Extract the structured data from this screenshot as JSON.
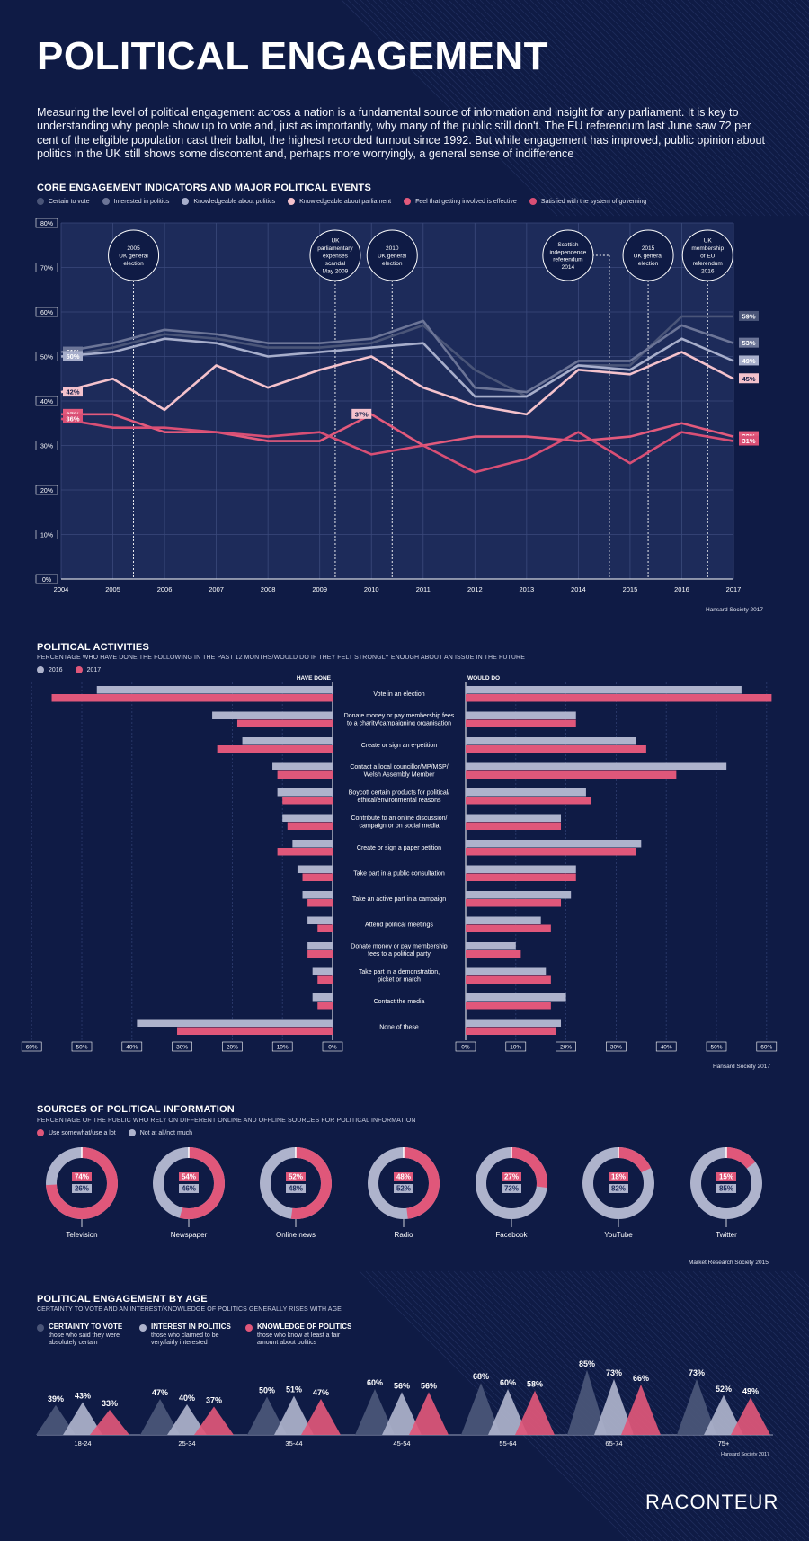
{
  "header": {
    "title": "POLITICAL ENGAGEMENT",
    "intro": "Measuring the level of political engagement across a nation is a fundamental source of information and insight for any parliament. It is key to understanding why people show up to vote and, just as importantly, why many of the public still don't. The EU referendum last June saw 72 per cent of the eligible population cast their ballot, the highest recorded turnout since 1992. But while engagement has improved, public opinion about politics in the UK still shows some discontent and, perhaps more worryingly, a general sense of indifference"
  },
  "colors": {
    "background": "#0f1b45",
    "panel": "#1d2b5a",
    "certain": "#4a5578",
    "interested": "#6c7597",
    "knowledgeable": "#a7aecb",
    "parliament": "#f4c2cc",
    "involved": "#e35a7c",
    "satisfied": "#d94f75",
    "bar2016": "#aeb3cc",
    "bar2017": "#e0577a"
  },
  "chart_data": [
    {
      "type": "line",
      "title": "CORE ENGAGEMENT INDICATORS AND MAJOR POLITICAL EVENTS",
      "source": "Hansard Society 2017",
      "x": [
        2004,
        2005,
        2006,
        2007,
        2008,
        2009,
        2010,
        2011,
        2012,
        2013,
        2014,
        2015,
        2016,
        2017
      ],
      "ylim": [
        0,
        80
      ],
      "yticks": [
        "0%",
        "10%",
        "20%",
        "30%",
        "40%",
        "50%",
        "60%",
        "70%",
        "80%"
      ],
      "series": [
        {
          "name": "Certain to vote",
          "color": "#4a5578",
          "values": [
            50,
            52,
            55,
            54,
            52,
            52,
            53,
            57,
            47,
            41,
            48,
            48,
            59,
            59
          ],
          "start_label": "",
          "end_label": "59%"
        },
        {
          "name": "Interested in politics",
          "color": "#6c7597",
          "values": [
            51,
            53,
            56,
            55,
            53,
            53,
            54,
            58,
            43,
            42,
            49,
            49,
            57,
            53
          ],
          "start_label": "51%",
          "end_label": "53%"
        },
        {
          "name": "Knowledgeable about politics",
          "color": "#a7aecb",
          "values": [
            50,
            51,
            54,
            53,
            50,
            51,
            52,
            53,
            41,
            41,
            48,
            47,
            54,
            49
          ],
          "start_label": "50%",
          "end_label": "49%"
        },
        {
          "name": "Knowledgeable about parliament",
          "color": "#f4c2cc",
          "values": [
            42,
            45,
            38,
            48,
            43,
            47,
            50,
            43,
            39,
            37,
            47,
            46,
            51,
            45
          ],
          "start_label": "42%",
          "end_label": "45%"
        },
        {
          "name": "Feel that getting involved is effective",
          "color": "#e35a7c",
          "values": [
            37,
            37,
            33,
            33,
            31,
            31,
            37,
            30,
            32,
            32,
            31,
            32,
            35,
            32
          ],
          "start_label": "37%",
          "end_label": "32%"
        },
        {
          "name": "Satisfied with the system of governing",
          "color": "#d94f75",
          "values": [
            36,
            34,
            34,
            33,
            32,
            33,
            28,
            30,
            24,
            27,
            33,
            26,
            33,
            31
          ],
          "start_label": "36%",
          "end_label": "31%"
        }
      ],
      "mid_label": {
        "text": "37%",
        "year": 2010,
        "value": 37
      },
      "events": [
        {
          "lines": [
            "2005",
            "UK general",
            "election"
          ],
          "year": 2005.4
        },
        {
          "lines": [
            "UK",
            "parliamentary",
            "expenses",
            "scandal",
            "May 2009"
          ],
          "year": 2009.3
        },
        {
          "lines": [
            "2010",
            "UK general",
            "election"
          ],
          "year": 2010.4
        },
        {
          "lines": [
            "Scottish",
            "independence",
            "referendum",
            "2014"
          ],
          "year": 2014.6
        },
        {
          "lines": [
            "2015",
            "UK general",
            "election"
          ],
          "year": 2015.35
        },
        {
          "lines": [
            "UK",
            "membership",
            "of EU",
            "referendum",
            "2016"
          ],
          "year": 2016.5
        }
      ]
    },
    {
      "type": "bar",
      "title": "POLITICAL ACTIVITIES",
      "subtitle": "PERCENTAGE WHO HAVE DONE THE FOLLOWING IN THE PAST 12 MONTHS/WOULD DO IF THEY FELT STRONGLY ENOUGH ABOUT AN ISSUE IN THE FUTURE",
      "source": "Hansard Society 2017",
      "left_heading": "HAVE DONE",
      "right_heading": "WOULD DO",
      "legend": [
        "2016",
        "2017"
      ],
      "ticks_left": [
        "60%",
        "50%",
        "40%",
        "30%",
        "20%",
        "10%",
        "0%"
      ],
      "ticks_right": [
        "0%",
        "10%",
        "20%",
        "30%",
        "40%",
        "50%",
        "60%"
      ],
      "categories": [
        [
          "Vote in an election"
        ],
        [
          "Donate money or pay membership fees",
          "to a charity/campaigning organisation"
        ],
        [
          "Create or sign an e-petition"
        ],
        [
          "Contact a local councillor/MP/MSP/",
          "Welsh Assembly Member"
        ],
        [
          "Boycott certain products for political/",
          "ethical/environmental reasons"
        ],
        [
          "Contribute to an online discussion/",
          "campaign or on social media"
        ],
        [
          "Create or sign a paper petition"
        ],
        [
          "Take part in a public consultation"
        ],
        [
          "Take an active part in a campaign"
        ],
        [
          "Attend political meetings"
        ],
        [
          "Donate money or pay membership",
          "fees to a political party"
        ],
        [
          "Take part in a demonstration,",
          "picket or march"
        ],
        [
          "Contact the media"
        ],
        [
          "None of these"
        ]
      ],
      "have_done_2016": [
        47,
        24,
        18,
        12,
        11,
        10,
        8,
        7,
        6,
        5,
        5,
        4,
        4,
        39
      ],
      "have_done_2017": [
        56,
        19,
        23,
        11,
        10,
        9,
        11,
        6,
        5,
        3,
        5,
        3,
        3,
        31
      ],
      "would_do_2016": [
        55,
        22,
        34,
        52,
        24,
        19,
        35,
        22,
        21,
        15,
        10,
        16,
        20,
        19
      ],
      "would_do_2017": [
        61,
        22,
        36,
        42,
        25,
        19,
        34,
        22,
        19,
        17,
        11,
        17,
        17,
        18
      ]
    },
    {
      "type": "pie",
      "title": "SOURCES OF POLITICAL INFORMATION",
      "subtitle": "PERCENTAGE OF THE PUBLIC WHO RELY ON DIFFERENT ONLINE AND OFFLINE SOURCES FOR POLITICAL INFORMATION",
      "source": "Market Research Society 2015",
      "legend": [
        "Use somewhat/use a lot",
        "Not at all/not much"
      ],
      "items": [
        {
          "name": "Television",
          "use": 74,
          "not": 26,
          "use_label": "74%",
          "not_label": "26%"
        },
        {
          "name": "Newspaper",
          "use": 54,
          "not": 46,
          "use_label": "54%",
          "not_label": "46%"
        },
        {
          "name": "Online news",
          "use": 52,
          "not": 48,
          "use_label": "52%",
          "not_label": "48%"
        },
        {
          "name": "Radio",
          "use": 48,
          "not": 52,
          "use_label": "48%",
          "not_label": "52%"
        },
        {
          "name": "Facebook",
          "use": 27,
          "not": 73,
          "use_label": "27%",
          "not_label": "73%"
        },
        {
          "name": "YouTube",
          "use": 18,
          "not": 82,
          "use_label": "18%",
          "not_label": "82%"
        },
        {
          "name": "Twitter",
          "use": 15,
          "not": 85,
          "use_label": "15%",
          "not_label": "85%"
        }
      ]
    },
    {
      "type": "bar",
      "title": "POLITICAL ENGAGEMENT BY AGE",
      "subtitle": "CERTAINTY TO VOTE AND AN INTEREST/KNOWLEDGE OF POLITICS GENERALLY RISES WITH AGE",
      "source": "Hansard Society 2017",
      "legend": [
        {
          "title": "CERTAINTY TO VOTE",
          "desc": [
            "those who said they were",
            "absolutely certain"
          ]
        },
        {
          "title": "INTEREST IN POLITICS",
          "desc": [
            "those who claimed to be",
            "very/fairly interested"
          ]
        },
        {
          "title": "KNOWLEDGE OF POLITICS",
          "desc": [
            "those who know at least a fair",
            "amount about politics"
          ]
        }
      ],
      "categories": [
        "18-24",
        "25-34",
        "35-44",
        "45-54",
        "55-64",
        "65-74",
        "75+"
      ],
      "series": [
        {
          "name": "Certainty to vote",
          "values": [
            39,
            47,
            50,
            60,
            68,
            85,
            73
          ]
        },
        {
          "name": "Interest in politics",
          "values": [
            43,
            40,
            51,
            56,
            60,
            73,
            52
          ]
        },
        {
          "name": "Knowledge of politics",
          "values": [
            33,
            37,
            47,
            56,
            58,
            66,
            49
          ]
        }
      ]
    }
  ],
  "footer": {
    "logo": "RACONTEUR"
  }
}
